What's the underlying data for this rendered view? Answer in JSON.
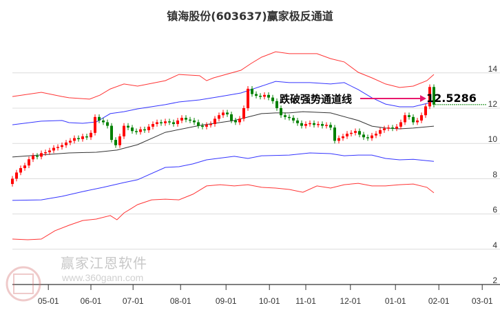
{
  "chart_data": {
    "type": "candlestick",
    "title": "镇海股份(603637)赢家极反通道",
    "ylim": [
      2,
      15.5
    ],
    "yticks": [
      2,
      4,
      6,
      8,
      10,
      12,
      14
    ],
    "ytick_labels": [
      "2",
      "4",
      "6",
      "8",
      "10",
      "12",
      "14"
    ],
    "xlim": [
      -0.5,
      114.7
    ],
    "xticks": [
      {
        "at": 8.7,
        "label": "05-01"
      },
      {
        "at": 19,
        "label": "06-01"
      },
      {
        "at": 29.2,
        "label": "07-01"
      },
      {
        "at": 40.7,
        "label": "08-01"
      },
      {
        "at": 51.7,
        "label": "09-01"
      },
      {
        "at": 62.2,
        "label": "10-01"
      },
      {
        "at": 71,
        "label": "11-01"
      },
      {
        "at": 81.8,
        "label": "12-01"
      },
      {
        "at": 92.7,
        "label": "01-01"
      },
      {
        "at": 103.2,
        "label": "02-01"
      },
      {
        "at": 113.7,
        "label": "03-01"
      }
    ],
    "grid": true,
    "closes": [
      8.0,
      8.35,
      8.6,
      8.75,
      9.1,
      9.3,
      9.25,
      9.45,
      9.5,
      9.6,
      9.75,
      9.8,
      9.9,
      10.05,
      10.15,
      10.3,
      10.25,
      10.4,
      10.35,
      10.6,
      11.5,
      11.3,
      11.2,
      11.0,
      10.2,
      9.9,
      10.4,
      11.0,
      10.9,
      10.7,
      10.65,
      10.8,
      10.75,
      10.95,
      11.1,
      11.2,
      11.15,
      11.25,
      11.2,
      11.1,
      11.3,
      11.45,
      11.35,
      11.3,
      11.2,
      11.0,
      10.95,
      11.05,
      11.1,
      11.4,
      11.6,
      11.75,
      11.65,
      11.3,
      11.2,
      11.4,
      12.0,
      13.1,
      12.8,
      12.7,
      12.65,
      12.75,
      12.6,
      12.4,
      12.0,
      11.6,
      11.5,
      11.45,
      11.3,
      11.15,
      11.0,
      11.1,
      11.15,
      11.05,
      11.1,
      11.0,
      11.05,
      10.9,
      10.15,
      10.3,
      10.4,
      10.55,
      10.6,
      10.7,
      10.5,
      10.35,
      10.3,
      10.45,
      10.55,
      10.75,
      10.85,
      10.9,
      10.85,
      10.95,
      11.2,
      11.6,
      11.5,
      11.2,
      11.3,
      11.6,
      12.1,
      13.2,
      12.2
    ],
    "bands": [
      {
        "name": "outer-upper",
        "color": "#ff0000",
        "points": [
          [
            0,
            12.66
          ],
          [
            7,
            12.9
          ],
          [
            12,
            12.66
          ],
          [
            13.7,
            12.59
          ],
          [
            18.7,
            12.51
          ],
          [
            21.2,
            12.74
          ],
          [
            23.7,
            13.09
          ],
          [
            27,
            13.37
          ],
          [
            30.3,
            13.25
          ],
          [
            37,
            13.56
          ],
          [
            40.3,
            13.91
          ],
          [
            45.3,
            13.84
          ],
          [
            47,
            13.56
          ],
          [
            48.7,
            13.72
          ],
          [
            55.3,
            14.15
          ],
          [
            57.8,
            14.54
          ],
          [
            60.3,
            14.89
          ],
          [
            63.7,
            15.2
          ],
          [
            67,
            15.09
          ],
          [
            73.7,
            15.09
          ],
          [
            77,
            14.81
          ],
          [
            80.3,
            14.62
          ],
          [
            83.7,
            14.03
          ],
          [
            87,
            13.72
          ],
          [
            90.3,
            13.37
          ],
          [
            93.7,
            13.17
          ],
          [
            97,
            13.25
          ],
          [
            100.3,
            13.56
          ],
          [
            102,
            13.91
          ]
        ]
      },
      {
        "name": "inner-upper",
        "color": "#0000ff",
        "points": [
          [
            0,
            11.06
          ],
          [
            7,
            11.26
          ],
          [
            12,
            11.3
          ],
          [
            13.7,
            11.18
          ],
          [
            17,
            11.14
          ],
          [
            20.3,
            11.22
          ],
          [
            23.7,
            11.69
          ],
          [
            27,
            11.8
          ],
          [
            30.3,
            11.96
          ],
          [
            37,
            12.2
          ],
          [
            40.3,
            12.35
          ],
          [
            45.3,
            12.47
          ],
          [
            50.3,
            12.66
          ],
          [
            55.3,
            12.86
          ],
          [
            60.3,
            13.25
          ],
          [
            63.7,
            13.52
          ],
          [
            67,
            13.45
          ],
          [
            72,
            13.45
          ],
          [
            77,
            13.37
          ],
          [
            80.3,
            13.45
          ],
          [
            83.7,
            13.05
          ],
          [
            87,
            12.59
          ],
          [
            90.3,
            12.23
          ],
          [
            93.7,
            12.08
          ],
          [
            97,
            12.08
          ],
          [
            100.3,
            12.27
          ],
          [
            102,
            12.39
          ]
        ]
      },
      {
        "name": "middle",
        "color": "#000000",
        "points": [
          [
            0,
            9.23
          ],
          [
            13.7,
            9.46
          ],
          [
            20.3,
            9.5
          ],
          [
            25.3,
            9.62
          ],
          [
            30.3,
            9.93
          ],
          [
            37,
            10.63
          ],
          [
            45.3,
            11.02
          ],
          [
            53.7,
            11.3
          ],
          [
            60.3,
            11.69
          ],
          [
            63.7,
            11.73
          ],
          [
            67,
            11.73
          ],
          [
            70.3,
            11.8
          ],
          [
            77,
            11.73
          ],
          [
            83.7,
            11.3
          ],
          [
            87,
            10.98
          ],
          [
            90.3,
            10.87
          ],
          [
            93.7,
            10.83
          ],
          [
            97,
            10.87
          ],
          [
            102,
            10.98
          ]
        ]
      },
      {
        "name": "inner-lower",
        "color": "#0000ff",
        "points": [
          [
            0,
            6.77
          ],
          [
            7,
            6.8
          ],
          [
            12,
            7.0
          ],
          [
            17,
            7.27
          ],
          [
            22,
            7.51
          ],
          [
            27,
            7.78
          ],
          [
            30.3,
            7.94
          ],
          [
            37,
            8.64
          ],
          [
            40.3,
            8.68
          ],
          [
            43.7,
            8.84
          ],
          [
            47,
            9.07
          ],
          [
            53.7,
            9.27
          ],
          [
            57,
            9.15
          ],
          [
            60.3,
            9.3
          ],
          [
            67,
            9.34
          ],
          [
            72,
            9.46
          ],
          [
            77,
            9.42
          ],
          [
            80.3,
            9.3
          ],
          [
            83.7,
            9.34
          ],
          [
            87,
            9.34
          ],
          [
            90.3,
            9.15
          ],
          [
            93.7,
            9.07
          ],
          [
            97,
            9.1
          ],
          [
            102,
            8.98
          ]
        ]
      },
      {
        "name": "outer-lower",
        "color": "#ff0000",
        "points": [
          [
            0,
            4.58
          ],
          [
            3.7,
            4.54
          ],
          [
            7,
            4.58
          ],
          [
            10.3,
            5.05
          ],
          [
            13.7,
            5.36
          ],
          [
            17,
            5.63
          ],
          [
            20.3,
            5.71
          ],
          [
            23.7,
            5.91
          ],
          [
            25.3,
            5.67
          ],
          [
            27,
            6.06
          ],
          [
            28.7,
            6.3
          ],
          [
            30.3,
            6.53
          ],
          [
            33.7,
            6.8
          ],
          [
            37,
            6.84
          ],
          [
            40.3,
            6.8
          ],
          [
            43.7,
            7.12
          ],
          [
            47,
            7.59
          ],
          [
            50.3,
            7.66
          ],
          [
            53.7,
            7.59
          ],
          [
            57,
            7.66
          ],
          [
            60.3,
            7.51
          ],
          [
            63.7,
            7.47
          ],
          [
            67,
            7.39
          ],
          [
            70.3,
            7.23
          ],
          [
            73.7,
            7.59
          ],
          [
            77,
            7.47
          ],
          [
            80.3,
            7.66
          ],
          [
            83.7,
            7.74
          ],
          [
            87,
            7.59
          ],
          [
            90.3,
            7.59
          ],
          [
            93.7,
            7.66
          ],
          [
            97,
            7.7
          ],
          [
            100.3,
            7.51
          ],
          [
            102,
            7.2
          ]
        ]
      }
    ],
    "annotation": {
      "text": "跌破强势通道线",
      "value_label": "12.5286",
      "arrow_color": "#e8186c",
      "level_line_color": "#008000"
    },
    "up_color": "#ff0000",
    "down_color": "#008000"
  },
  "watermark": {
    "brand": "赢家江恩软件",
    "url": "www.360gann.com",
    "seal": "江赢恩家"
  }
}
